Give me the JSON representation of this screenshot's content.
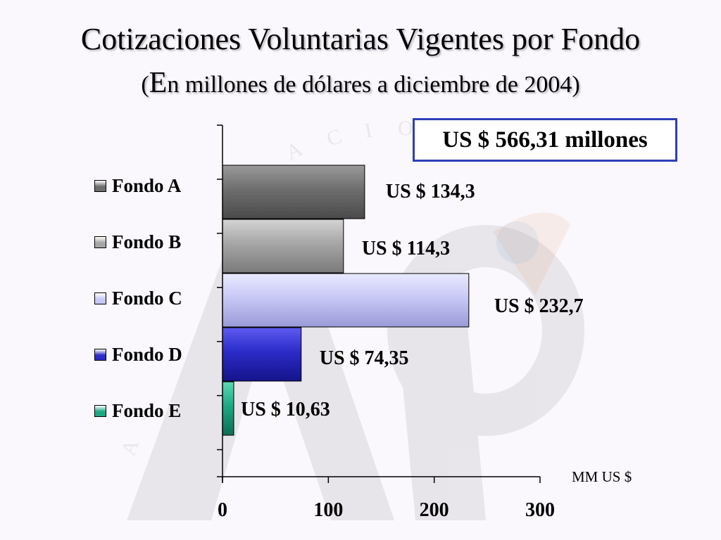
{
  "title": "Cotizaciones Voluntarias Vigentes por Fondo",
  "subtitle_open": "(",
  "subtitle_big": "E",
  "subtitle_rest": "n millones de dólares a diciembre de 2004)",
  "total_label": "US $ 566,31 millones",
  "unit_label": "MM US $",
  "chart_data": {
    "type": "bar",
    "orientation": "horizontal",
    "title": "Cotizaciones Voluntarias Vigentes por Fondo",
    "subtitle": "(En millones de dólares a diciembre de 2004)",
    "xlabel": "MM US $",
    "ylabel": "",
    "xlim": [
      0,
      300
    ],
    "xticks": [
      0,
      100,
      200,
      300
    ],
    "grid": false,
    "legend_position": "left",
    "categories": [
      "Fondo A",
      "Fondo B",
      "Fondo C",
      "Fondo D",
      "Fondo E"
    ],
    "values": [
      134.3,
      114.3,
      232.7,
      74.35,
      10.63
    ],
    "data_labels": [
      "US $ 134,3",
      "US $ 114,3",
      "US $ 232,7",
      "US $ 74,35",
      "US $ 10,63"
    ],
    "colors": [
      "#6e6e6e",
      "#a6a6a6",
      "#c8c8f6",
      "#2b2bc8",
      "#1ea884"
    ],
    "annotation": "US $ 566,31 millones"
  }
}
